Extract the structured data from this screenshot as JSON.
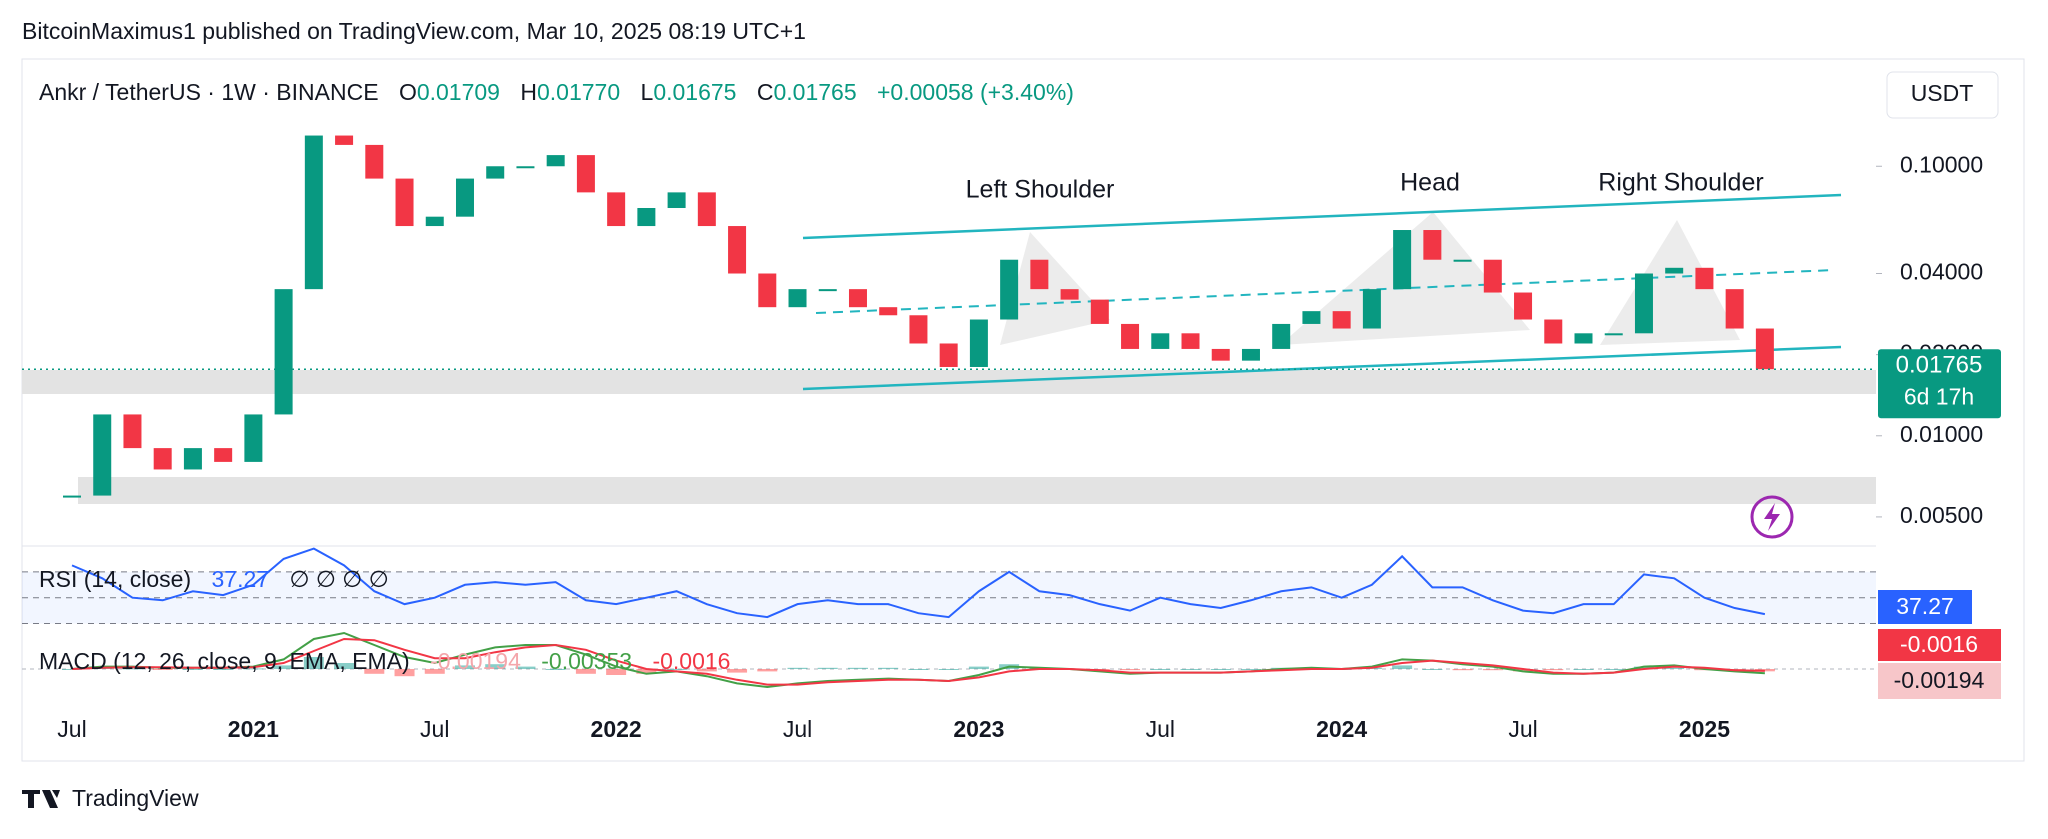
{
  "header": {
    "text": "BitcoinMaximus1 published on TradingView.com, Mar 10, 2025 08:19 UTC+1"
  },
  "chart_data": {
    "type": "candlestick",
    "title": "Ankr / TetherUS · 1W · BINANCE",
    "legend": {
      "o": "O",
      "o_value": "0.01709",
      "h": "H",
      "h_value": "0.01770",
      "l": "L",
      "l_value": "0.01675",
      "c": "C",
      "c_value": "0.01765",
      "change": "+0.00058 (+3.40%)"
    },
    "y_unit": "USDT",
    "categories": [
      "Jul",
      null,
      null,
      null,
      null,
      null,
      "2021",
      null,
      null,
      null,
      null,
      null,
      "Jul",
      null,
      null,
      null,
      null,
      null,
      "2022",
      null,
      null,
      null,
      null,
      null,
      "Jul",
      null,
      null,
      null,
      null,
      null,
      "2023",
      null,
      null,
      null,
      null,
      null,
      "Jul",
      null,
      null,
      null,
      null,
      null,
      "2024",
      null,
      null,
      null,
      null,
      null,
      "Jul",
      null,
      null,
      null,
      null,
      null,
      "2025",
      null,
      null
    ],
    "series": [
      {
        "color_up": "#089981",
        "color_down": "#f23645",
        "values": [
          0.006,
          0.012,
          0.009,
          0.0075,
          0.009,
          0.008,
          0.012,
          0.035,
          0.13,
          0.12,
          0.09,
          0.06,
          0.065,
          0.09,
          0.1,
          0.1,
          0.11,
          0.08,
          0.06,
          0.07,
          0.08,
          0.06,
          0.04,
          0.03,
          0.035,
          0.035,
          0.03,
          0.028,
          0.022,
          0.018,
          0.027,
          0.045,
          0.035,
          0.032,
          0.026,
          0.021,
          0.024,
          0.021,
          0.019,
          0.021,
          0.026,
          0.029,
          0.025,
          0.035,
          0.058,
          0.045,
          0.045,
          0.034,
          0.027,
          0.022,
          0.024,
          0.024,
          0.04,
          0.042,
          0.035,
          0.025,
          0.01765
        ]
      }
    ],
    "log_scale": true,
    "ylim": [
      0.0039,
      0.25
    ],
    "yticks": [
      {
        "value": 0.1,
        "label": "0.10000"
      },
      {
        "value": 0.04,
        "label": "0.04000"
      },
      {
        "value": 0.02,
        "label": "0.02000"
      },
      {
        "value": 0.01,
        "label": "0.01000"
      },
      {
        "value": 0.005,
        "label": "0.00500"
      }
    ],
    "annotations": [
      {
        "text": "Left Shoulder"
      },
      {
        "text": "Head"
      },
      {
        "text": "Right Shoulder"
      }
    ],
    "countdown": "6d 17h",
    "rsi": {
      "title": "RSI (14, close)",
      "empty_values": "∅ ∅ ∅ ∅",
      "color": "#2962ff",
      "ylim": [
        25,
        90
      ],
      "levels": [
        70,
        50,
        30
      ],
      "values": [
        75,
        65,
        50,
        48,
        55,
        52,
        60,
        80,
        88,
        75,
        55,
        45,
        50,
        60,
        62,
        60,
        62,
        48,
        45,
        50,
        55,
        45,
        38,
        35,
        45,
        48,
        45,
        45,
        38,
        35,
        55,
        70,
        55,
        52,
        45,
        40,
        50,
        45,
        42,
        48,
        55,
        58,
        50,
        60,
        82,
        58,
        58,
        48,
        40,
        38,
        45,
        45,
        68,
        65,
        50,
        42,
        37.27
      ]
    },
    "macd": {
      "title": "MACD (12, 26, close, 9, EMA, EMA)",
      "histogram_label": "-0.00194",
      "ylim": [
        -0.03,
        0.03
      ],
      "series": [
        {
          "color": "#43a047",
          "values": [
            0,
            0.002,
            0.002,
            0.001,
            0.001,
            0.001,
            0.002,
            0.008,
            0.025,
            0.03,
            0.02,
            0.01,
            0.005,
            0.012,
            0.018,
            0.02,
            0.02,
            0.012,
            0.002,
            -0.004,
            -0.002,
            -0.006,
            -0.012,
            -0.015,
            -0.012,
            -0.01,
            -0.009,
            -0.008,
            -0.009,
            -0.01,
            -0.005,
            0.002,
            0.001,
            0,
            -0.002,
            -0.004,
            -0.003,
            -0.003,
            -0.003,
            -0.002,
            0,
            0.001,
            0,
            0.002,
            0.008,
            0.007,
            0.004,
            0.002,
            -0.002,
            -0.004,
            -0.004,
            -0.003,
            0.002,
            0.003,
            0,
            -0.002,
            -0.00353
          ]
        },
        {
          "color": "#f23645",
          "values": [
            0,
            0.001,
            0.0015,
            0.0015,
            0.001,
            0.001,
            0.0015,
            0.005,
            0.015,
            0.025,
            0.024,
            0.016,
            0.009,
            0.009,
            0.014,
            0.018,
            0.02,
            0.016,
            0.007,
            0,
            -0.002,
            -0.004,
            -0.009,
            -0.013,
            -0.013,
            -0.011,
            -0.01,
            -0.009,
            -0.009,
            -0.01,
            -0.007,
            -0.002,
            0,
            0,
            -0.001,
            -0.003,
            -0.003,
            -0.003,
            -0.003,
            -0.002,
            -0.001,
            0,
            0,
            0.001,
            0.005,
            0.007,
            0.005,
            0.003,
            0,
            -0.003,
            -0.004,
            -0.003,
            0,
            0.002,
            0.001,
            -0.001,
            -0.0016
          ]
        }
      ]
    }
  },
  "footer": {
    "brand": "TradingView"
  }
}
